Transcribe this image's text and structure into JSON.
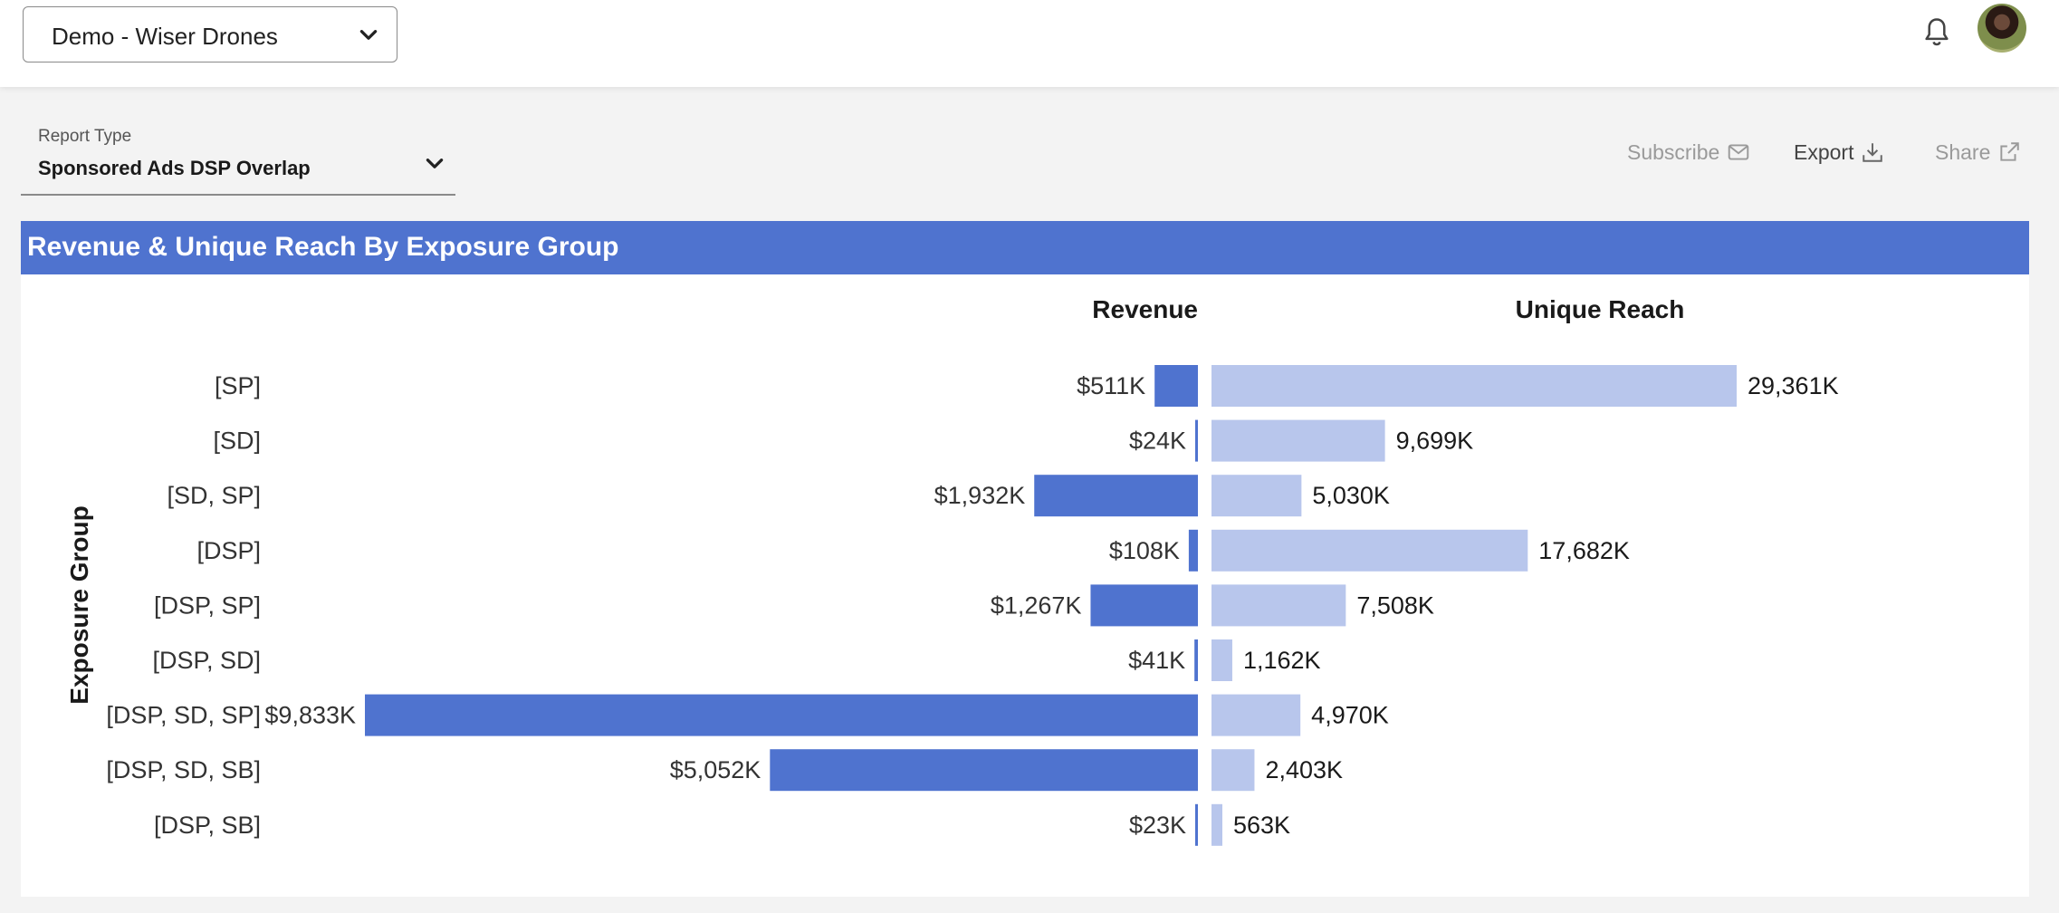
{
  "topbar": {
    "account_label": "Demo - Wiser Drones",
    "icons": {
      "chevron": "chevron-down-icon",
      "bell": "bell-icon",
      "avatar": "user-avatar"
    }
  },
  "toolbar": {
    "report_type_caption": "Report Type",
    "report_type_value": "Sponsored Ads DSP Overlap",
    "subscribe_label": "Subscribe",
    "export_label": "Export",
    "share_label": "Share"
  },
  "panel": {
    "title": "Revenue & Unique Reach By Exposure Group",
    "header_color": "#4f73cf"
  },
  "chart_data": {
    "type": "bar",
    "orientation": "horizontal",
    "y_axis_label": "Exposure Group",
    "categories": [
      "[SP]",
      "[SD]",
      "[SD, SP]",
      "[DSP]",
      "[DSP, SP]",
      "[DSP, SD]",
      "[DSP, SD, SP]",
      "[DSP, SD, SB]",
      "[DSP, SB]"
    ],
    "series": [
      {
        "name": "Revenue",
        "color": "#4f73cf",
        "direction": "left",
        "values": [
          511,
          24,
          1932,
          108,
          1267,
          41,
          9833,
          5052,
          23
        ],
        "labels": [
          "$511K",
          "$24K",
          "$1,932K",
          "$108K",
          "$1,267K",
          "$41K",
          "$9,833K",
          "$5,052K",
          "$23K"
        ]
      },
      {
        "name": "Unique Reach",
        "color": "#b8c6ec",
        "direction": "right",
        "values": [
          29361,
          9699,
          5030,
          17682,
          7508,
          1162,
          4970,
          2403,
          563
        ],
        "labels": [
          "29,361K",
          "9,699K",
          "5,030K",
          "17,682K",
          "7,508K",
          "1,162K",
          "4,970K",
          "2,403K",
          "563K"
        ]
      }
    ]
  }
}
